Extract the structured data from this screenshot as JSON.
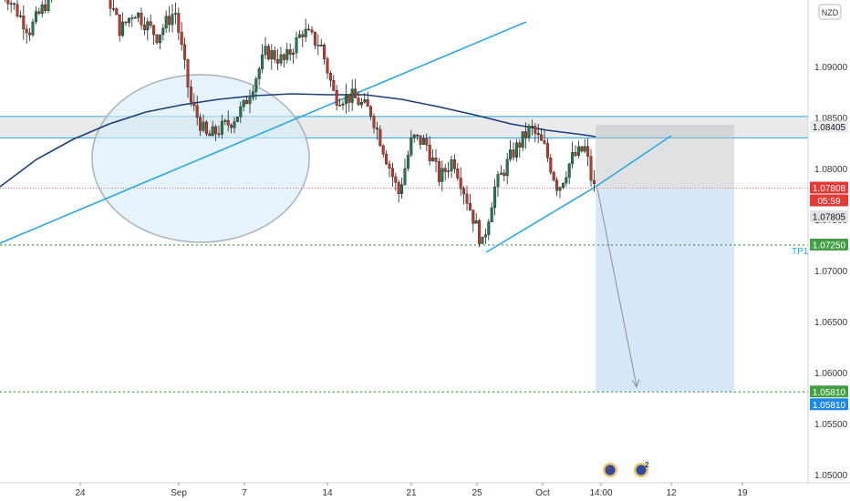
{
  "currency_label": "NZD",
  "colors": {
    "up": "#1f7a4c",
    "down": "#c0392b",
    "ema": "#1c3f7a",
    "trendline": "#29a8e0",
    "zone": "#d7d9dc",
    "target_zone": "#cfe3f7",
    "price_tag": "#e53935",
    "tp_tag": "#43a047",
    "mid_tag": "#3a3f4a",
    "low_tag": "#1e88e5",
    "tp_label": "#29a8e0"
  },
  "chart_data": {
    "type": "candlestick",
    "ylim": [
      1.049,
      1.096
    ],
    "y_ticks": [
      "1.09000",
      "1.08500",
      "1.08000",
      "1.07500",
      "1.07000",
      "1.06500",
      "1.06000",
      "1.05500",
      "1.05000"
    ],
    "y_tick_values": [
      1.09,
      1.085,
      1.08,
      1.075,
      1.07,
      1.065,
      1.06,
      1.055,
      1.05
    ],
    "x_ticks": [
      "24",
      "Sep",
      "7",
      "14",
      "21",
      "25",
      "Oct",
      "14:00",
      "12",
      "19"
    ],
    "price_tags": {
      "current_price": "1.07808",
      "countdown": "05:59",
      "mid_price": "1.07805",
      "zone_top": "1.08405",
      "take_profit": "1.07250",
      "target_a": "1.05810",
      "target_b": "1.05810"
    },
    "tp_label": "TP1",
    "resistance_zone": [
      1.083,
      1.0851
    ],
    "target_level": 1.0581,
    "tp_level": 1.0725,
    "current_price_value": 1.07808
  },
  "events": {
    "calendar_badge": "2"
  }
}
